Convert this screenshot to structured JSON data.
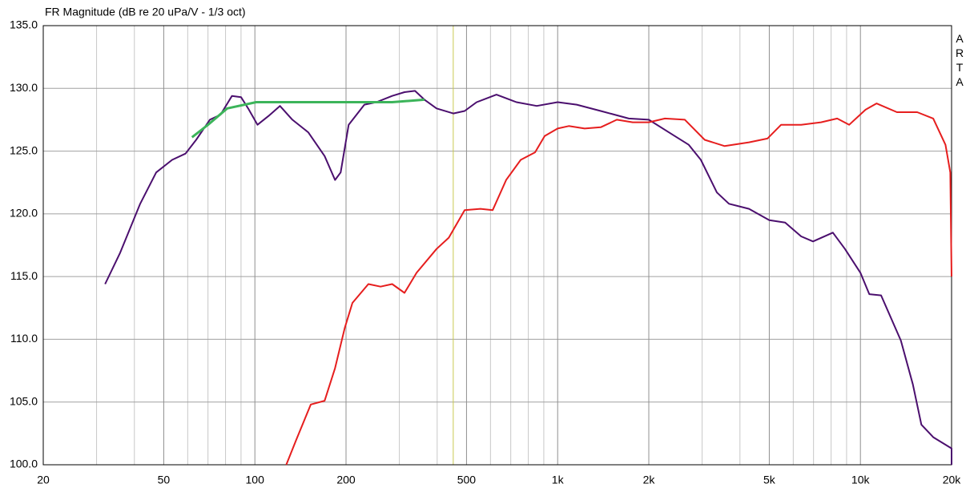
{
  "chart_data": {
    "type": "line",
    "title": "FR Magnitude (dB re 20 uPa/V - 1/3 oct)",
    "side_label": "ARTA",
    "xscale": "log",
    "xlim": [
      20,
      20000
    ],
    "ylim": [
      100,
      135
    ],
    "xticks": [
      20,
      50,
      100,
      200,
      500,
      {
        "value": 1000,
        "label": "1k"
      },
      {
        "value": 2000,
        "label": "2k"
      },
      {
        "value": 5000,
        "label": "5k"
      },
      {
        "value": 10000,
        "label": "10k"
      },
      {
        "value": 20000,
        "label": "20k"
      }
    ],
    "minor_xticks": [
      30,
      40,
      60,
      70,
      80,
      90,
      300,
      400,
      600,
      700,
      800,
      900,
      3000,
      4000,
      6000,
      7000,
      8000,
      9000
    ],
    "yticks": [
      {
        "value": 100,
        "label": "100.0"
      },
      {
        "value": 105,
        "label": "105.0"
      },
      {
        "value": 110,
        "label": "110.0"
      },
      {
        "value": 115,
        "label": "115.0"
      },
      {
        "value": 120,
        "label": "120.0"
      },
      {
        "value": 125,
        "label": "125.0"
      },
      {
        "value": 130,
        "label": "130.0"
      },
      {
        "value": 135,
        "label": "135.0"
      }
    ],
    "grid": true,
    "marker_x": 452,
    "marker_color": "#c8c850",
    "series": [
      {
        "color": "#4b0f6e",
        "x": [
          32,
          35.9,
          41.8,
          47.2,
          53.3,
          59,
          64,
          71,
          77,
          84,
          90,
          95,
          102,
          111,
          121,
          133,
          150,
          170,
          184,
          192,
          204,
          230,
          252,
          284,
          312,
          338,
          363,
          398,
          452,
          493,
          540,
          628,
          731,
          853,
          1000,
          1156,
          1388,
          1718,
          2000,
          2400,
          2710,
          2972,
          3357,
          3680,
          4286,
          5000,
          5640,
          6370,
          6970,
          8110,
          8890,
          10000,
          10700,
          11700,
          13600,
          14900,
          15900,
          17400,
          20000,
          20000
        ],
        "values": [
          114.4,
          116.9,
          120.8,
          123.3,
          124.3,
          124.8,
          125.9,
          127.5,
          127.9,
          129.4,
          129.3,
          128.4,
          127.1,
          127.8,
          128.6,
          127.5,
          126.5,
          124.6,
          122.7,
          123.3,
          127.1,
          128.7,
          128.9,
          129.4,
          129.7,
          129.8,
          129.1,
          128.4,
          128.0,
          128.2,
          128.9,
          129.5,
          128.9,
          128.6,
          128.9,
          128.7,
          128.2,
          127.6,
          127.5,
          126.3,
          125.5,
          124.3,
          121.7,
          120.8,
          120.4,
          119.5,
          119.3,
          118.2,
          117.8,
          118.5,
          117.2,
          115.3,
          113.6,
          113.5,
          109.9,
          106.4,
          103.2,
          102.2,
          101.3,
          100
        ]
      },
      {
        "color": "#e61e1e",
        "x": [
          127,
          137,
          153,
          170,
          184,
          198,
          210,
          237,
          260,
          284,
          312,
          342,
          398,
          437,
          493,
          556,
          610,
          676,
          755,
          842,
          906,
          1000,
          1088,
          1228,
          1388,
          1568,
          1770,
          2000,
          2260,
          2630,
          3060,
          3560,
          4286,
          4930,
          5470,
          6370,
          7410,
          8380,
          9180,
          10400,
          11300,
          13200,
          15400,
          17400,
          19100,
          19800,
          20000
        ],
        "values": [
          100,
          102,
          104.8,
          105.1,
          107.7,
          110.9,
          112.9,
          114.4,
          114.2,
          114.4,
          113.7,
          115.3,
          117.2,
          118.1,
          120.3,
          120.4,
          120.3,
          122.7,
          124.3,
          124.9,
          126.2,
          126.8,
          127.0,
          126.8,
          126.9,
          127.5,
          127.3,
          127.3,
          127.6,
          127.5,
          125.9,
          125.4,
          125.7,
          126.0,
          127.1,
          127.1,
          127.3,
          127.6,
          127.1,
          128.3,
          128.8,
          128.1,
          128.1,
          127.6,
          125.5,
          123.3,
          115
        ]
      },
      {
        "color": "#3cb45a",
        "x": [
          62,
          70,
          81,
          101,
          235,
          284,
          363
        ],
        "values": [
          126.1,
          127.1,
          128.4,
          128.9,
          128.9,
          128.9,
          129.1
        ]
      }
    ]
  }
}
